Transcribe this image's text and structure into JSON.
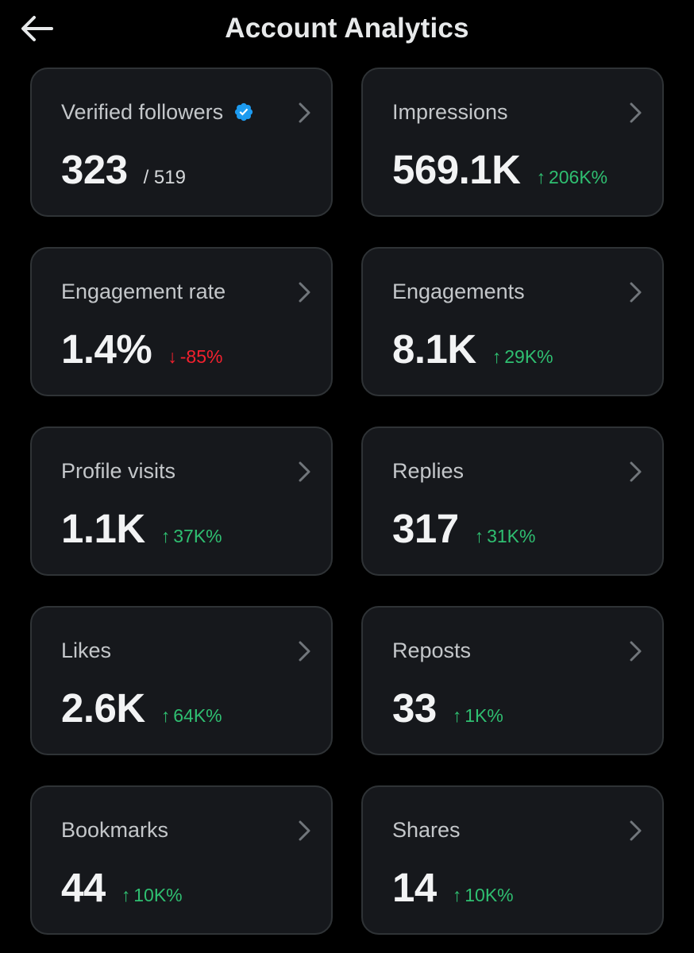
{
  "header": {
    "back_icon": "arrow-left-icon",
    "title": "Account Analytics"
  },
  "colors": {
    "background": "#000000",
    "card": "#16181c",
    "card_border": "#2f3336",
    "positive": "#2fbf71",
    "negative": "#f4212e",
    "verified": "#1d9bf0"
  },
  "cards": [
    {
      "label": "Verified followers",
      "value": "323",
      "sub": "/ 519",
      "verified_icon": "verified-badge-icon"
    },
    {
      "label": "Impressions",
      "value": "569.1K",
      "arrow": "↑",
      "change": "206K%",
      "direction": "up"
    },
    {
      "label": "Engagement rate",
      "value": "1.4%",
      "arrow": "↓",
      "change": "-85%",
      "direction": "down"
    },
    {
      "label": "Engagements",
      "value": "8.1K",
      "arrow": "↑",
      "change": "29K%",
      "direction": "up"
    },
    {
      "label": "Profile visits",
      "value": "1.1K",
      "arrow": "↑",
      "change": "37K%",
      "direction": "up"
    },
    {
      "label": "Replies",
      "value": "317",
      "arrow": "↑",
      "change": "31K%",
      "direction": "up"
    },
    {
      "label": "Likes",
      "value": "2.6K",
      "arrow": "↑",
      "change": "64K%",
      "direction": "up"
    },
    {
      "label": "Reposts",
      "value": "33",
      "arrow": "↑",
      "change": "1K%",
      "direction": "up"
    },
    {
      "label": "Bookmarks",
      "value": "44",
      "arrow": "↑",
      "change": "10K%",
      "direction": "up"
    },
    {
      "label": "Shares",
      "value": "14",
      "arrow": "↑",
      "change": "10K%",
      "direction": "up"
    }
  ]
}
